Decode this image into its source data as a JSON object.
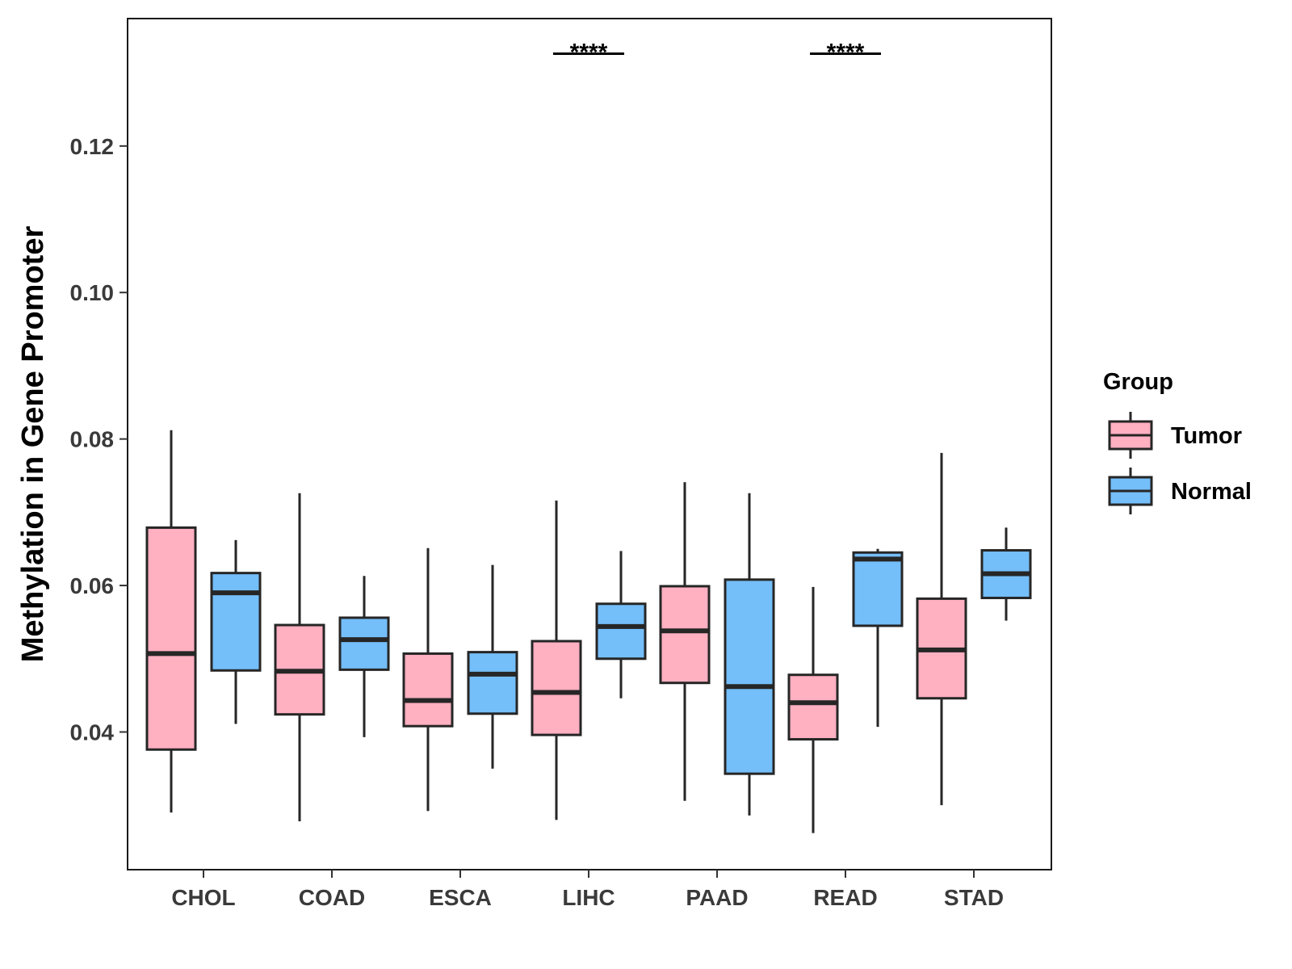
{
  "chart_data": {
    "type": "boxplot",
    "title": "",
    "xlabel": "",
    "ylabel": "Methylation in Gene Promoter",
    "ylim": [
      0.0212,
      0.1374
    ],
    "yticks": [
      "0.04",
      "0.06",
      "0.08",
      "0.10",
      "0.12"
    ],
    "categories": [
      "CHOL",
      "COAD",
      "ESCA",
      "LIHC",
      "PAAD",
      "READ",
      "STAD"
    ],
    "legend": {
      "title": "Group",
      "position": "right",
      "entries": [
        "Tumor",
        "Normal"
      ]
    },
    "colors": {
      "Tumor": "#FFB0C1",
      "Normal": "#74BEF9",
      "stroke": "#262626"
    },
    "series": [
      {
        "name": "Tumor",
        "boxes": [
          {
            "min": 0.029,
            "q1": 0.0376,
            "median": 0.0507,
            "q3": 0.0679,
            "max": 0.0812
          },
          {
            "min": 0.0278,
            "q1": 0.0424,
            "median": 0.0483,
            "q3": 0.0546,
            "max": 0.0726
          },
          {
            "min": 0.0292,
            "q1": 0.0408,
            "median": 0.0443,
            "q3": 0.0507,
            "max": 0.0651
          },
          {
            "min": 0.028,
            "q1": 0.0396,
            "median": 0.0454,
            "q3": 0.0524,
            "max": 0.0716
          },
          {
            "min": 0.0306,
            "q1": 0.0467,
            "median": 0.0538,
            "q3": 0.0599,
            "max": 0.0741
          },
          {
            "min": 0.0262,
            "q1": 0.039,
            "median": 0.044,
            "q3": 0.0478,
            "max": 0.0598
          },
          {
            "min": 0.03,
            "q1": 0.0446,
            "median": 0.0512,
            "q3": 0.0582,
            "max": 0.0781
          }
        ]
      },
      {
        "name": "Normal",
        "boxes": [
          {
            "min": 0.0411,
            "q1": 0.0484,
            "median": 0.059,
            "q3": 0.0617,
            "max": 0.0662
          },
          {
            "min": 0.0393,
            "q1": 0.0485,
            "median": 0.0526,
            "q3": 0.0556,
            "max": 0.0613
          },
          {
            "min": 0.035,
            "q1": 0.0425,
            "median": 0.0479,
            "q3": 0.0509,
            "max": 0.0628
          },
          {
            "min": 0.0446,
            "q1": 0.05,
            "median": 0.0544,
            "q3": 0.0575,
            "max": 0.0647
          },
          {
            "min": 0.0286,
            "q1": 0.0343,
            "median": 0.0462,
            "q3": 0.0608,
            "max": 0.0726
          },
          {
            "min": 0.0407,
            "q1": 0.0545,
            "median": 0.0636,
            "q3": 0.0645,
            "max": 0.065
          },
          {
            "min": 0.0552,
            "q1": 0.0583,
            "median": 0.0616,
            "q3": 0.0648,
            "max": 0.0679
          }
        ]
      }
    ],
    "annotations": [
      {
        "category": "LIHC",
        "label": "****",
        "y": 0.1326
      },
      {
        "category": "READ",
        "label": "****",
        "y": 0.1326
      }
    ]
  }
}
